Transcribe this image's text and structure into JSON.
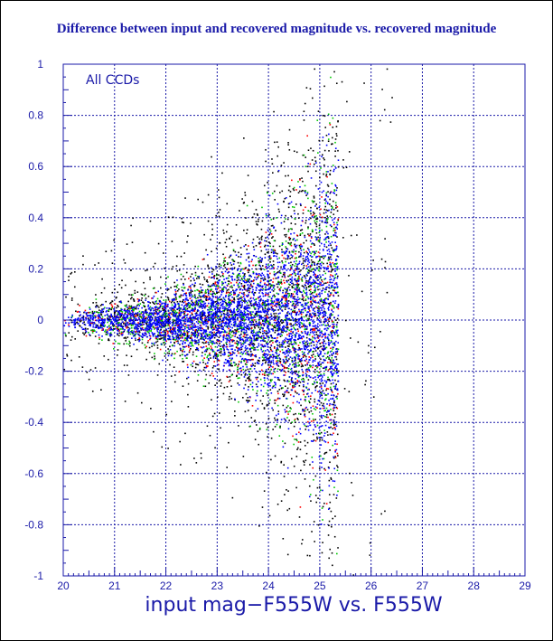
{
  "chart_data": {
    "type": "scatter",
    "title": "Difference between input and recovered magnitude vs. recovered magnitude",
    "xlabel": "input mag−F555W vs. F555W",
    "ylabel": "",
    "annotation": "All CCDs",
    "xlim": [
      20,
      29
    ],
    "ylim": [
      -1,
      1
    ],
    "x_ticks": [
      "20",
      "21",
      "22",
      "23",
      "24",
      "25",
      "26",
      "27",
      "28",
      "29"
    ],
    "y_ticks": [
      "-1",
      "-0.8",
      "-0.6",
      "-0.4",
      "-0.2",
      "0",
      "0.2",
      "0.4",
      "0.6",
      "0.8",
      "1"
    ],
    "grid": true,
    "series_colors": {
      "black": "#000000",
      "red": "#ff0000",
      "green": "#00c800",
      "blue": "#0000ff"
    },
    "axis_color": "#1a1aa8",
    "grid_color": "#1a1aa8",
    "trend": {
      "x": [
        20.0,
        21.0,
        22.0,
        23.0,
        24.0,
        24.5,
        25.0,
        25.3
      ],
      "spread": [
        0.02,
        0.035,
        0.06,
        0.1,
        0.16,
        0.22,
        0.3,
        0.35
      ],
      "cutoff_x": 25.35
    }
  }
}
